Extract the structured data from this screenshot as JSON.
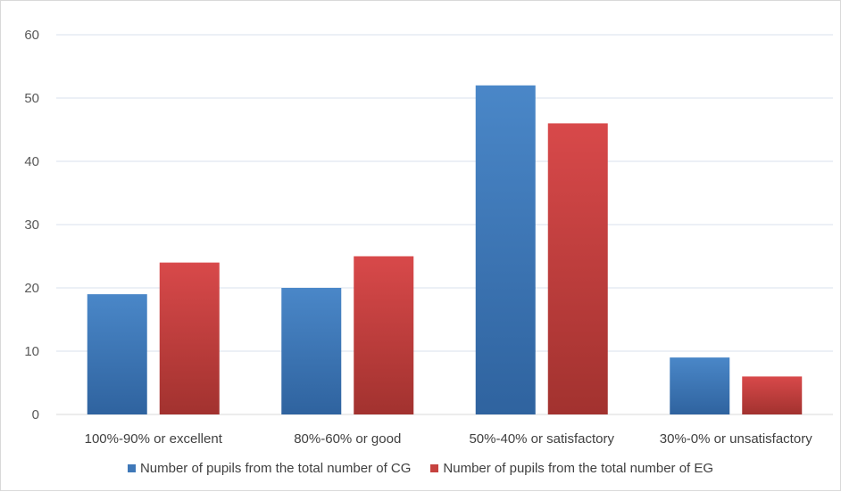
{
  "chart_data": {
    "type": "bar",
    "categories": [
      "100%-90% or excellent",
      "80%-60% or good",
      "50%-40% or satisfactory",
      "30%-0% or unsatisfactory"
    ],
    "series": [
      {
        "name": "Number of pupils from the total number of CG",
        "values": [
          19,
          20,
          52,
          9
        ],
        "color": "#3f78b8"
      },
      {
        "name": "Number of pupils from the total number of EG",
        "values": [
          24,
          25,
          46,
          6
        ],
        "color": "#c6423f"
      }
    ],
    "ylim": [
      0,
      60
    ],
    "yticks": [
      0,
      10,
      20,
      30,
      40,
      50,
      60
    ],
    "grid": true,
    "legend_position": "bottom"
  }
}
